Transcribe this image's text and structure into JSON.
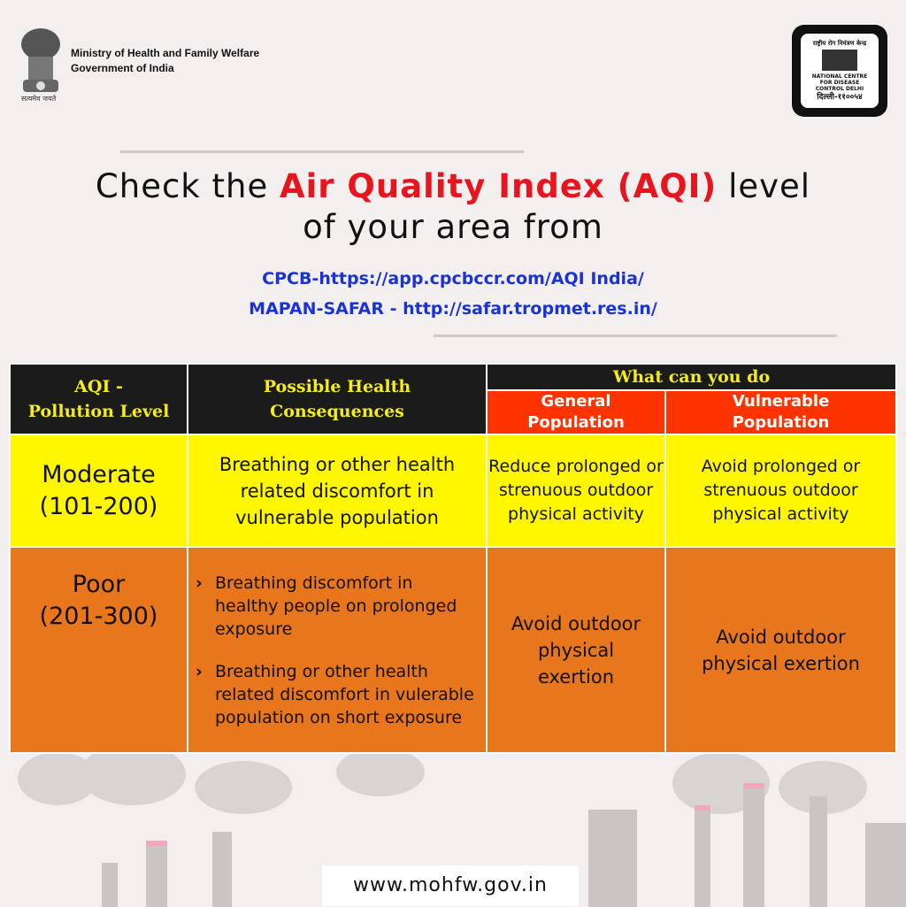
{
  "header": {
    "ministry_line1": "Ministry of Health and Family Welfare",
    "ministry_line2": "Government of India",
    "motto": "सत्यमेव जयते",
    "ncdc_text": "NATIONAL CENTRE FOR DISEASE CONTROL DELHI",
    "ncdc_hindi": "राष्ट्रीय रोग नियंत्रण केन्द्र",
    "ncdc_bottom": "दिल्ली-११००५४"
  },
  "headline": {
    "part1": "Check the ",
    "highlight": "Air Quality Index (AQI)",
    "part2": " level",
    "line2": "of your area from"
  },
  "links": [
    "CPCB-https://app.cpcbccr.com/AQI India/",
    "MAPAN-SAFAR - http://safar.tropmet.res.in/"
  ],
  "table": {
    "headers": {
      "level": [
        "AQI -",
        "Pollution Level"
      ],
      "consequences": [
        "Possible Health",
        "Consequences"
      ],
      "what": "What can you do",
      "general": [
        "General",
        "Population"
      ],
      "vulnerable": [
        "Vulnerable",
        "Population"
      ]
    },
    "rows": [
      {
        "level": [
          "Moderate",
          "(101-200)"
        ],
        "consequences": "Breathing or other health related discomfort in vulnerable population",
        "general": "Reduce prolonged or strenuous outdoor physical activity",
        "vulnerable": "Avoid prolonged or strenuous outdoor physical activity"
      },
      {
        "level": [
          "Poor",
          "(201-300)"
        ],
        "consequences": [
          "Breathing discomfort in healthy people on prolonged exposure",
          "Breathing or other health related discomfort in vulerable population on short exposure"
        ],
        "general": "Avoid outdoor physical exertion",
        "vulnerable": "Avoid outdoor physical exertion"
      }
    ]
  },
  "colors": {
    "background": "#f4efef",
    "header": "#1b1b1b",
    "header_text": "#f6ec1b",
    "subheader": "#ff3300",
    "moderate": "#fff700",
    "poor": "#e8761c",
    "highlight": "#e8141e",
    "link": "#1a33d6"
  },
  "footer": {
    "website": "www.mohfw.gov.in"
  }
}
